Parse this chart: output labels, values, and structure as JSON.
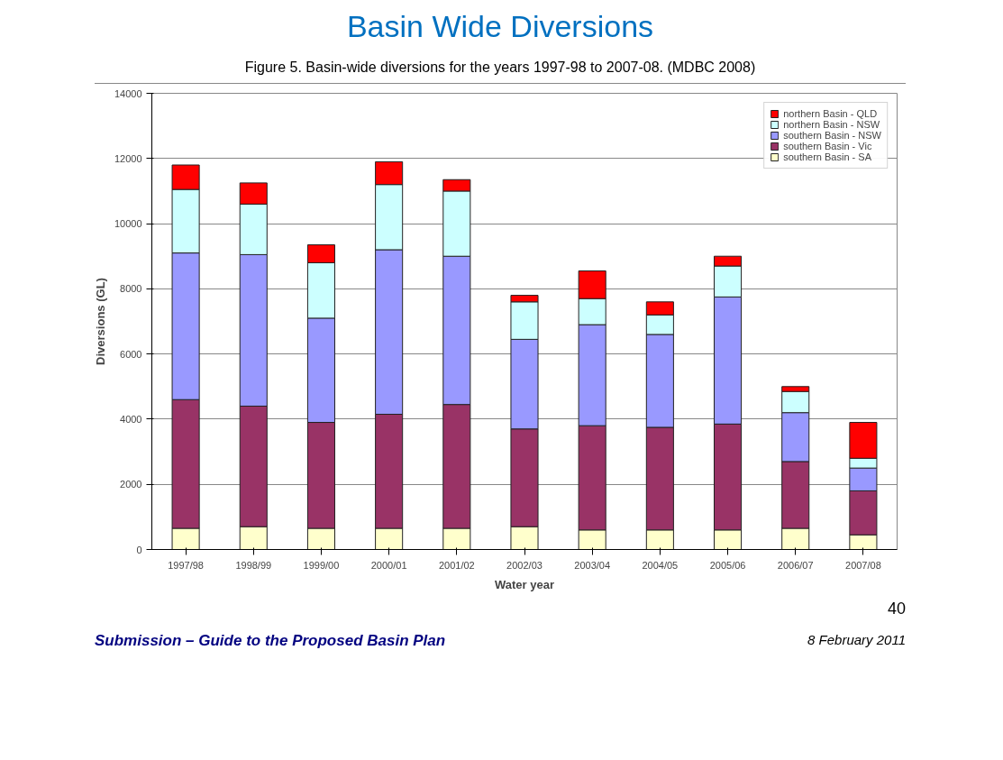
{
  "chart_data": {
    "type": "bar",
    "stacked": true,
    "title": "Basin Wide Diversions",
    "subtitle": "Figure 5. Basin-wide diversions for the years 1997-98 to 2007-08. (MDBC 2008)",
    "xlabel": "Water year",
    "ylabel": "Diversions (GL)",
    "categories": [
      "1997/98",
      "1998/99",
      "1999/00",
      "2000/01",
      "2001/02",
      "2002/03",
      "2003/04",
      "2004/05",
      "2005/06",
      "2006/07",
      "2007/08"
    ],
    "series": [
      {
        "name": "southern Basin - SA",
        "color": "#ffffcc",
        "values": [
          650,
          700,
          650,
          650,
          650,
          700,
          600,
          600,
          600,
          650,
          450
        ]
      },
      {
        "name": "southern Basin - Vic",
        "color": "#993366",
        "values": [
          3950,
          3700,
          3250,
          3500,
          3800,
          3000,
          3200,
          3150,
          3250,
          2050,
          1350
        ]
      },
      {
        "name": "southern Basin - NSW",
        "color": "#9999ff",
        "values": [
          4500,
          4650,
          3200,
          5050,
          4550,
          2750,
          3100,
          2850,
          3900,
          1500,
          700
        ]
      },
      {
        "name": "northern Basin - NSW",
        "color": "#ccffff",
        "values": [
          1950,
          1550,
          1700,
          2000,
          2000,
          1150,
          800,
          600,
          950,
          650,
          300
        ]
      },
      {
        "name": "northern Basin - QLD",
        "color": "#ff0000",
        "values": [
          750,
          650,
          550,
          700,
          350,
          200,
          850,
          400,
          300,
          150,
          1100
        ]
      }
    ],
    "ylim": [
      0,
      14000
    ],
    "yticks": [
      0,
      2000,
      4000,
      6000,
      8000,
      10000,
      12000,
      14000
    ],
    "grid": "y",
    "legend": "top right",
    "annotations": [
      "40",
      "Submission – Guide to the Proposed Basin Plan",
      "8 February 2011"
    ]
  }
}
